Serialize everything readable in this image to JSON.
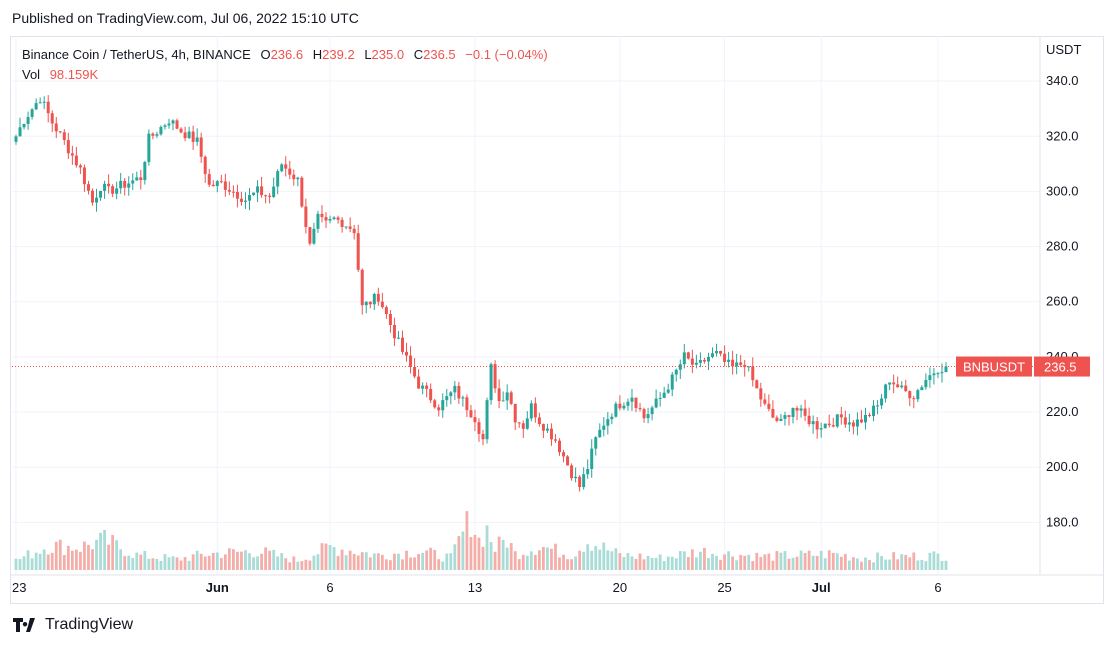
{
  "header": {
    "published": "Published on TradingView.com, Jul 06, 2022 15:10 UTC"
  },
  "legend": {
    "symbol": "Binance Coin / TetherUS, 4h, BINANCE",
    "o_label": "O",
    "o": "236.6",
    "h_label": "H",
    "h": "239.2",
    "l_label": "L",
    "l": "235.0",
    "c_label": "C",
    "c": "236.5",
    "change": "−0.1 (−0.04%)",
    "vol_label": "Vol",
    "vol": "98.159K"
  },
  "axis": {
    "unit": "USDT"
  },
  "price_tag": {
    "symbol": "BNBUSDT",
    "price": "236.5"
  },
  "footer": {
    "brand": "TradingView"
  },
  "colors": {
    "up": "#26a69a",
    "down": "#ef5350",
    "vol_up": "#a9dcd7",
    "vol_down": "#f4aeaa",
    "grid": "#f0f3fa",
    "axis_text": "#131722"
  },
  "chart_data": {
    "type": "candlestick",
    "symbol": "BNBUSDT",
    "interval": "4h",
    "y_ticks": [
      340.0,
      320.0,
      300.0,
      280.0,
      260.0,
      240.0,
      220.0,
      200.0,
      180.0
    ],
    "y_tick_labels": [
      "340.0",
      "320.0",
      "300.0",
      "280.0",
      "260.0",
      "240.0",
      "220.0",
      "200.0",
      "180.0"
    ],
    "ylim": [
      162.0,
      352.0
    ],
    "x_tick_labels": [
      "23",
      "Jun",
      "6",
      "13",
      "20",
      "25",
      "Jul",
      "6"
    ],
    "x_tick_index": [
      0,
      50,
      78,
      114,
      150,
      176,
      200,
      229
    ],
    "n_bars": 232,
    "last_price": 236.5,
    "grid": true,
    "volume_max_value": 300,
    "keyframes_index": [
      0,
      2,
      6,
      9,
      12,
      16,
      19,
      21,
      23,
      26,
      31,
      33,
      38,
      41,
      45,
      48,
      51,
      54,
      57,
      60,
      63,
      66,
      70,
      73,
      75,
      77,
      79,
      81,
      84,
      86,
      90,
      95,
      100,
      105,
      109,
      111,
      114,
      116,
      118,
      120,
      122,
      124,
      126,
      128,
      130,
      134,
      138,
      140,
      142,
      144,
      146,
      148,
      150,
      153,
      156,
      160,
      163,
      166,
      169,
      172,
      174,
      176,
      178,
      181,
      184,
      186,
      188,
      190,
      193,
      196,
      199,
      202,
      205,
      208,
      211,
      214,
      217,
      220,
      223,
      226,
      229,
      231
    ],
    "keyframes_close": [
      320,
      326,
      334,
      325,
      318,
      308,
      296,
      302,
      300,
      302,
      305,
      319,
      326,
      322,
      318,
      302,
      303,
      300,
      297,
      300,
      298,
      310,
      304,
      280,
      290,
      288,
      290,
      289,
      286,
      258,
      262,
      245,
      230,
      222,
      228,
      224,
      218,
      210,
      236,
      224,
      228,
      218,
      215,
      222,
      217,
      210,
      198,
      193,
      200,
      210,
      216,
      220,
      223,
      226,
      218,
      225,
      232,
      240,
      236,
      240,
      241,
      238,
      236,
      238,
      228,
      222,
      218,
      216,
      222,
      218,
      215,
      216,
      218,
      216,
      218,
      222,
      232,
      228,
      226,
      232,
      236,
      236.5
    ],
    "volume_keyframes_index": [
      0,
      8,
      16,
      22,
      30,
      40,
      48,
      60,
      70,
      78,
      90,
      100,
      108,
      113,
      115,
      117,
      119,
      122,
      124,
      130,
      138,
      142,
      144,
      150,
      160,
      170,
      176,
      186,
      196,
      203,
      210,
      220,
      231
    ],
    "volume_keyframes_value": [
      35,
      90,
      85,
      110,
      55,
      40,
      60,
      70,
      35,
      85,
      55,
      70,
      45,
      195,
      110,
      150,
      80,
      115,
      60,
      90,
      55,
      110,
      95,
      55,
      45,
      70,
      60,
      50,
      55,
      60,
      45,
      50,
      55
    ]
  }
}
